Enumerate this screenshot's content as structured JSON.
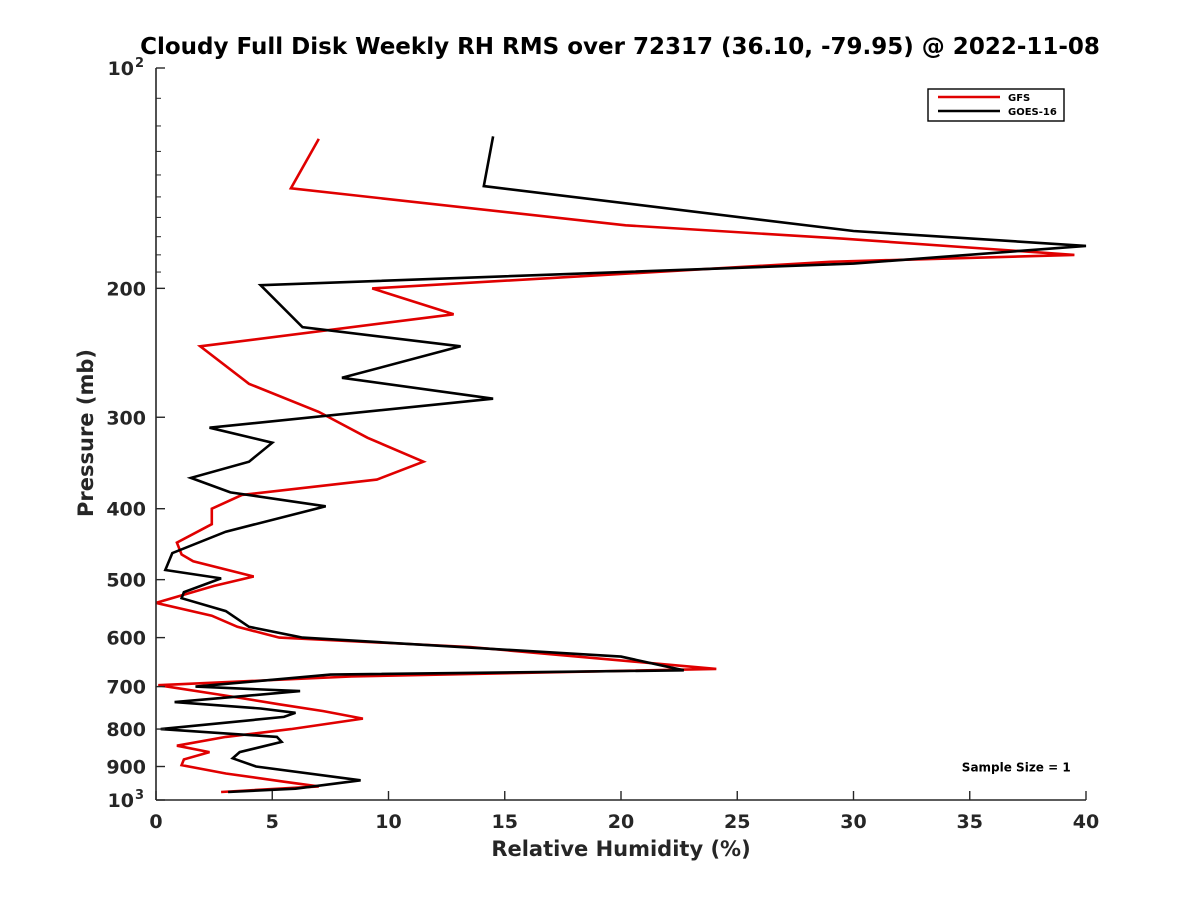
{
  "chart_data": {
    "type": "line",
    "title": "Cloudy Full Disk Weekly RH RMS over 72317 (36.10, -79.95) @ 2022-11-08",
    "xlabel": "Relative Humidity (%)",
    "ylabel": "Pressure (mb)",
    "xlim": [
      0,
      40
    ],
    "ylim": [
      100,
      1000
    ],
    "yscale": "log",
    "y_reversed": true,
    "x_ticks": [
      {
        "value": 0,
        "label": "0"
      },
      {
        "value": 5,
        "label": "5"
      },
      {
        "value": 10,
        "label": "10"
      },
      {
        "value": 15,
        "label": "15"
      },
      {
        "value": 20,
        "label": "20"
      },
      {
        "value": 25,
        "label": "25"
      },
      {
        "value": 30,
        "label": "30"
      },
      {
        "value": 35,
        "label": "35"
      },
      {
        "value": 40,
        "label": "40"
      }
    ],
    "y_ticks": [
      {
        "value": 100,
        "label": "10",
        "sup": "2"
      },
      {
        "value": 200,
        "label": "200"
      },
      {
        "value": 300,
        "label": "300"
      },
      {
        "value": 400,
        "label": "400"
      },
      {
        "value": 500,
        "label": "500"
      },
      {
        "value": 600,
        "label": "600"
      },
      {
        "value": 700,
        "label": "700"
      },
      {
        "value": 800,
        "label": "800"
      },
      {
        "value": 900,
        "label": "900"
      },
      {
        "value": 1000,
        "label": "10",
        "sup": "3"
      }
    ],
    "grid": false,
    "legend_position": "top-right",
    "series": [
      {
        "name": "GFS",
        "color": "#e00000",
        "x": [
          7.0,
          5.8,
          20.2,
          29.5,
          39.5,
          29.0,
          9.3,
          12.8,
          1.9,
          4.0,
          7.0,
          9.1,
          11.5,
          9.5,
          3.7,
          2.4,
          2.4,
          0.9,
          1.1,
          1.6,
          4.2,
          2.5,
          0.0,
          2.4,
          3.5,
          5.3,
          13.5,
          24.1,
          8.4,
          0.1,
          3.0,
          5.3,
          7.2,
          8.9,
          5.8,
          3.0,
          0.9,
          2.3,
          1.2,
          1.1,
          3.0,
          5.5,
          7.0,
          2.8
        ],
        "y": [
          125,
          146,
          164,
          171,
          180,
          184,
          200,
          217,
          240,
          270,
          295,
          320,
          345,
          365,
          383,
          400,
          420,
          445,
          462,
          472,
          495,
          510,
          538,
          560,
          580,
          600,
          618,
          662,
          678,
          697,
          720,
          740,
          756,
          774,
          800,
          820,
          843,
          860,
          880,
          896,
          920,
          944,
          958,
          975
        ]
      },
      {
        "name": "GOES-16",
        "color": "#000000",
        "x": [
          14.5,
          14.1,
          30.0,
          40.0,
          30.0,
          4.5,
          6.3,
          13.1,
          8.0,
          14.5,
          2.3,
          5.0,
          4.0,
          1.5,
          3.2,
          7.3,
          3.0,
          0.7,
          0.4,
          2.8,
          1.2,
          1.1,
          3.0,
          4.0,
          6.3,
          20.0,
          22.7,
          7.5,
          1.7,
          6.2,
          0.8,
          4.5,
          6.0,
          5.5,
          0.2,
          5.2,
          5.4,
          3.6,
          3.3,
          4.3,
          8.8,
          6.0,
          3.1
        ],
        "y": [
          124,
          145,
          167,
          175,
          185,
          198,
          226,
          240,
          265,
          283,
          310,
          325,
          345,
          363,
          380,
          397,
          430,
          460,
          485,
          498,
          520,
          530,
          552,
          580,
          600,
          637,
          665,
          674,
          700,
          710,
          735,
          750,
          760,
          770,
          800,
          820,
          833,
          860,
          877,
          900,
          940,
          965,
          975
        ]
      }
    ],
    "annotations": [
      {
        "text": "Sample Size = 1",
        "x": 37,
        "y": 900
      }
    ]
  }
}
